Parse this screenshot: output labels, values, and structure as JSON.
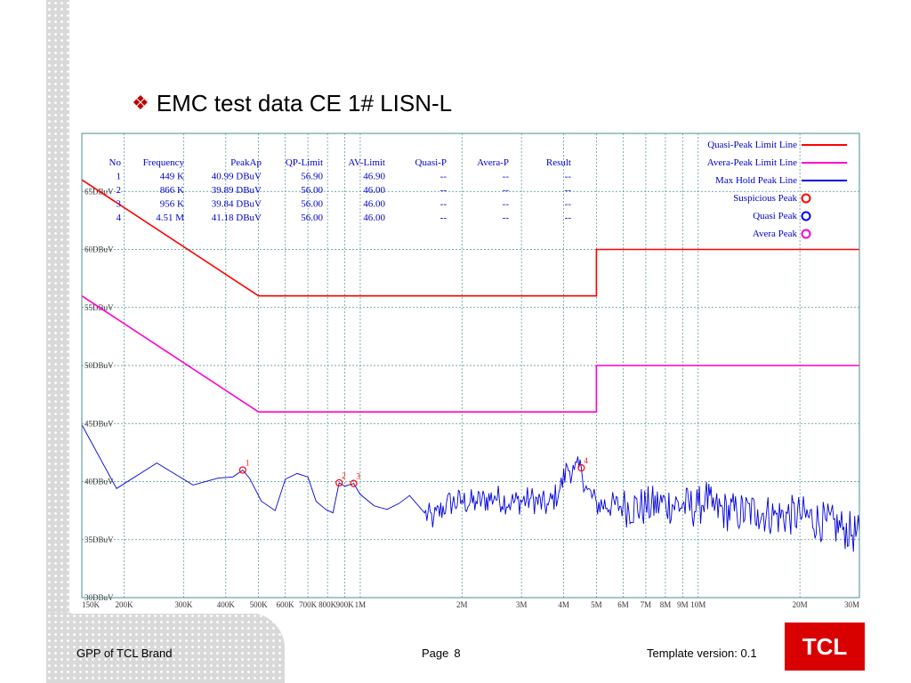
{
  "slide": {
    "bullet": "❖",
    "title": "EMC test data CE 1# LISN-L",
    "footer_left": "GPP of TCL Brand",
    "page_label": "Page",
    "page_number": "8",
    "template_version": "Template version: 0.1",
    "logo_text": "TCL"
  },
  "colors": {
    "qp_limit": "#ff0000",
    "av_limit": "#ff00cc",
    "max_hold": "#0000dd",
    "suspicious": "#ff0000",
    "quasi_peak": "#0000ff",
    "avera_peak": "#ff00cc",
    "table_text": "#0000cc",
    "grid": "#4a8f8f"
  },
  "chart_data": {
    "type": "line",
    "x_scale": "log",
    "xlim_hz": [
      150000,
      30000000
    ],
    "ylim": [
      30,
      70
    ],
    "grid": true,
    "y_unit": "DBuV",
    "x_ticks": [
      {
        "value": 150000,
        "label": "150K"
      },
      {
        "value": 200000,
        "label": "200K"
      },
      {
        "value": 300000,
        "label": "300K"
      },
      {
        "value": 400000,
        "label": "400K"
      },
      {
        "value": 500000,
        "label": "500K"
      },
      {
        "value": 600000,
        "label": "600K"
      },
      {
        "value": 700000,
        "label": "700K"
      },
      {
        "value": 800000,
        "label": "800K"
      },
      {
        "value": 900000,
        "label": "900K"
      },
      {
        "value": 1000000,
        "label": "1M"
      },
      {
        "value": 2000000,
        "label": "2M"
      },
      {
        "value": 3000000,
        "label": "3M"
      },
      {
        "value": 4000000,
        "label": "4M"
      },
      {
        "value": 5000000,
        "label": "5M"
      },
      {
        "value": 6000000,
        "label": "6M"
      },
      {
        "value": 7000000,
        "label": "7M"
      },
      {
        "value": 8000000,
        "label": "8M"
      },
      {
        "value": 9000000,
        "label": "9M"
      },
      {
        "value": 10000000,
        "label": "10M"
      },
      {
        "value": 20000000,
        "label": "20M"
      },
      {
        "value": 30000000,
        "label": "30M"
      }
    ],
    "y_ticks": [
      {
        "value": 30,
        "label": "30DBuV"
      },
      {
        "value": 35,
        "label": "35DBuV"
      },
      {
        "value": 40,
        "label": "40DBuV"
      },
      {
        "value": 45,
        "label": "45DBuV"
      },
      {
        "value": 50,
        "label": "50DBuV"
      },
      {
        "value": 55,
        "label": "55DBuV"
      },
      {
        "value": 60,
        "label": "60DBuV"
      },
      {
        "value": 65,
        "label": "65DBuV"
      }
    ],
    "legend": {
      "placement": "top-right",
      "items": [
        {
          "label": "Quasi-Peak Limit Line",
          "kind": "line",
          "color_key": "qp_limit"
        },
        {
          "label": "Avera-Peak Limit Line",
          "kind": "line",
          "color_key": "av_limit"
        },
        {
          "label": "Max Hold Peak Line",
          "kind": "line",
          "color_key": "max_hold"
        },
        {
          "label": "Suspicious Peak",
          "kind": "circle",
          "color_key": "suspicious"
        },
        {
          "label": "Quasi Peak",
          "kind": "circle",
          "color_key": "quasi_peak"
        },
        {
          "label": "Avera Peak",
          "kind": "circle",
          "color_key": "avera_peak"
        }
      ]
    },
    "limit_lines": [
      {
        "key": "qp_limit",
        "points": [
          [
            150000,
            66
          ],
          [
            500000,
            56
          ],
          [
            5000000,
            56
          ],
          [
            5000000,
            60
          ],
          [
            30000000,
            60
          ]
        ]
      },
      {
        "key": "av_limit",
        "points": [
          [
            150000,
            56
          ],
          [
            500000,
            46
          ],
          [
            5000000,
            46
          ],
          [
            5000000,
            50
          ],
          [
            30000000,
            50
          ]
        ]
      }
    ],
    "max_hold_anchors": [
      [
        150000,
        44.9
      ],
      [
        190000,
        39.4
      ],
      [
        250000,
        41.6
      ],
      [
        320000,
        39.7
      ],
      [
        380000,
        40.3
      ],
      [
        420000,
        40.4
      ],
      [
        449000,
        40.99
      ],
      [
        470000,
        40.3
      ],
      [
        510000,
        38.3
      ],
      [
        560000,
        37.5
      ],
      [
        600000,
        40.2
      ],
      [
        650000,
        40.7
      ],
      [
        700000,
        40.4
      ],
      [
        740000,
        38.3
      ],
      [
        790000,
        37.6
      ],
      [
        830000,
        37.3
      ],
      [
        866000,
        39.89
      ],
      [
        900000,
        39.6
      ],
      [
        956000,
        39.84
      ],
      [
        1000000,
        38.9
      ],
      [
        1100000,
        37.9
      ],
      [
        1200000,
        37.6
      ],
      [
        1300000,
        38.1
      ],
      [
        1400000,
        38.8
      ],
      [
        1550000,
        37.3
      ],
      [
        1650000,
        36.9
      ],
      [
        1800000,
        38.2
      ],
      [
        2000000,
        38.4
      ],
      [
        2200000,
        38.3
      ],
      [
        2500000,
        38.8
      ],
      [
        2800000,
        38.3
      ],
      [
        3200000,
        38.6
      ],
      [
        3600000,
        38.0
      ],
      [
        3900000,
        39.4
      ],
      [
        4100000,
        41.3
      ],
      [
        4300000,
        41.0
      ],
      [
        4510000,
        41.18
      ],
      [
        4700000,
        39.3
      ],
      [
        5000000,
        38.2
      ],
      [
        6000000,
        38.0
      ],
      [
        7000000,
        38.0
      ],
      [
        8000000,
        38.3
      ],
      [
        9000000,
        38.1
      ],
      [
        10000000,
        37.9
      ],
      [
        10500000,
        38.9
      ],
      [
        11000000,
        37.8
      ],
      [
        13000000,
        37.5
      ],
      [
        15000000,
        37.6
      ],
      [
        17000000,
        37.2
      ],
      [
        20000000,
        37.3
      ],
      [
        24000000,
        36.6
      ],
      [
        27000000,
        36.1
      ],
      [
        30000000,
        35.5
      ]
    ],
    "peaks": [
      {
        "label": "1",
        "freq_hz": 449000,
        "dbuv": 40.99
      },
      {
        "label": "2",
        "freq_hz": 866000,
        "dbuv": 39.89
      },
      {
        "label": "3",
        "freq_hz": 956000,
        "dbuv": 39.84
      },
      {
        "label": "4",
        "freq_hz": 4510000,
        "dbuv": 41.18
      }
    ],
    "table": {
      "columns": [
        "No",
        "Frequency",
        "PeakAp",
        "QP-Limit",
        "AV-Limit",
        "Quasi-P",
        "Avera-P",
        "Result"
      ],
      "rows": [
        [
          "1",
          "449 K",
          "40.99 DBuV",
          "56.90",
          "46.90",
          "--",
          "--",
          "--"
        ],
        [
          "2",
          "866 K",
          "39.89 DBuV",
          "56.00",
          "46.00",
          "--",
          "--",
          "--"
        ],
        [
          "3",
          "956 K",
          "39.84 DBuV",
          "56.00",
          "46.00",
          "--",
          "--",
          "--"
        ],
        [
          "4",
          "4.51 M",
          "41.18 DBuV",
          "56.00",
          "46.00",
          "--",
          "--",
          "--"
        ]
      ]
    }
  }
}
